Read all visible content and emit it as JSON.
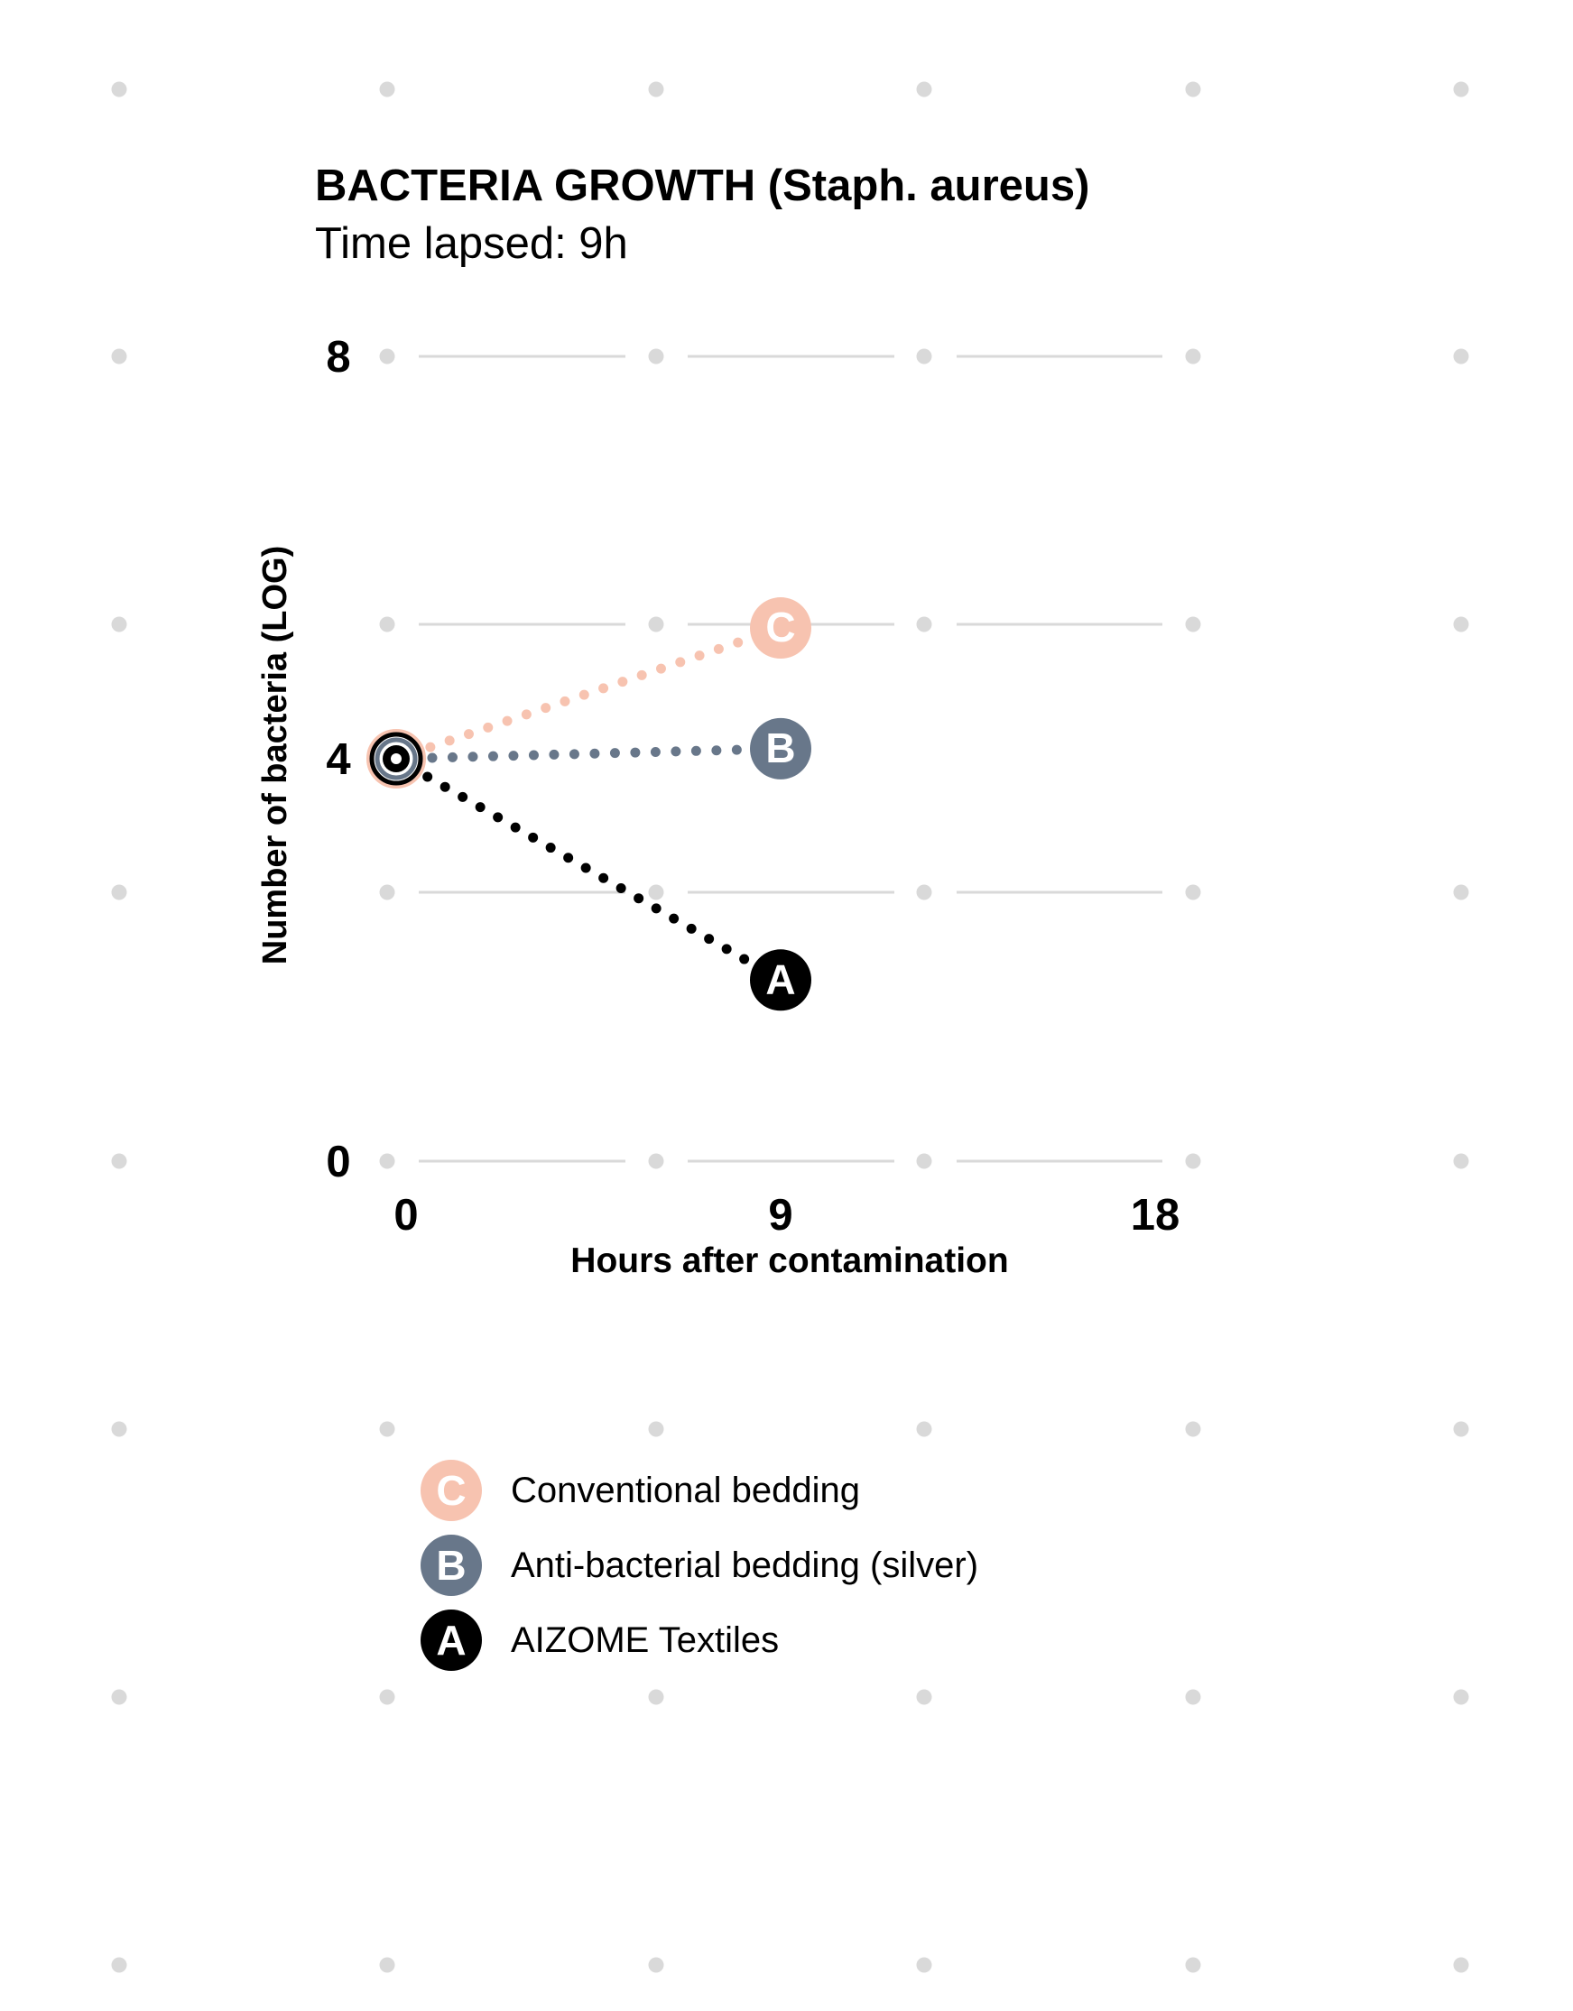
{
  "chart_data": {
    "type": "line",
    "title": "BACTERIA GROWTH (Staph. aureus)",
    "subtitle": "Time lapsed: 9h",
    "xlabel": "Hours after contamination",
    "ylabel": "Number of bacteria (LOG)",
    "xlim": [
      0,
      18
    ],
    "ylim": [
      0,
      8
    ],
    "x_ticks": [
      "0",
      "9",
      "18"
    ],
    "y_ticks": [
      "0",
      "4",
      "8"
    ],
    "grid": true,
    "legend_position": "bottom-left",
    "series": [
      {
        "name": "Conventional bedding",
        "marker": "C",
        "color": "#f7c3b0",
        "x": [
          0,
          9
        ],
        "y": [
          4.0,
          5.3
        ]
      },
      {
        "name": "Anti-bacterial bedding (silver)",
        "marker": "B",
        "color": "#68778a",
        "x": [
          0,
          9
        ],
        "y": [
          4.0,
          4.1
        ]
      },
      {
        "name": "AIZOME Textiles",
        "marker": "A",
        "color": "#000000",
        "x": [
          0,
          9
        ],
        "y": [
          4.0,
          1.8
        ]
      }
    ],
    "colors": {
      "grid_dot": "#d9d9d9",
      "grid_line": "#d9d9d9",
      "start_marker_rings": [
        "#f7c3b0",
        "#68778a",
        "#000000"
      ]
    }
  }
}
